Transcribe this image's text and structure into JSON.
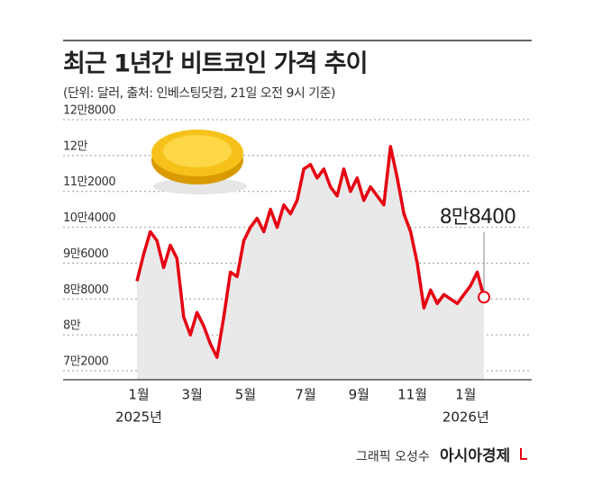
{
  "chart_data": {
    "type": "line",
    "title": "최근 1년간 비트코인 가격 추이",
    "subtitle": "(단위: 달러, 출처: 인베스팅닷컴, 21일 오전 9시 기준)",
    "credit": "그래픽 오성수",
    "source_logo": "아시아경제",
    "categories": [
      "1월",
      null,
      null,
      null,
      null,
      null,
      null,
      null,
      "3월",
      null,
      null,
      null,
      null,
      null,
      null,
      null,
      "5월",
      null,
      null,
      null,
      null,
      null,
      null,
      null,
      null,
      "7월",
      null,
      null,
      null,
      null,
      null,
      null,
      null,
      "9월",
      null,
      null,
      null,
      null,
      null,
      null,
      null,
      "11월",
      null,
      null,
      null,
      null,
      null,
      null,
      null,
      "1월",
      null,
      null,
      null
    ],
    "year_labels": [
      {
        "index": 0,
        "label": "2025년"
      },
      {
        "index": 49,
        "label": "2026년"
      }
    ],
    "series": [
      {
        "name": "비트코인",
        "color": "#e60012",
        "values": [
          92000,
          98000,
          103000,
          101000,
          95000,
          100000,
          97000,
          84000,
          80000,
          85000,
          82000,
          78000,
          75000,
          84000,
          94000,
          93000,
          101000,
          104000,
          106000,
          103000,
          108000,
          104000,
          109000,
          107000,
          110000,
          117000,
          118000,
          115000,
          117000,
          113000,
          111000,
          117000,
          112000,
          115000,
          110000,
          113000,
          111000,
          109000,
          122000,
          115000,
          107000,
          103000,
          96000,
          86000,
          90000,
          87000,
          89000,
          88000,
          87000,
          89000,
          91000,
          94000,
          88400
        ],
        "value_labels": [
          null,
          null,
          null,
          null,
          null,
          null,
          null,
          null,
          null,
          null,
          null,
          null,
          null,
          null,
          null,
          null,
          null,
          null,
          null,
          null,
          null,
          null,
          null,
          null,
          null,
          null,
          null,
          null,
          null,
          null,
          null,
          null,
          null,
          null,
          null,
          null,
          null,
          null,
          null,
          null,
          null,
          null,
          null,
          null,
          null,
          null,
          null,
          null,
          null,
          null,
          null,
          null,
          "8만8400"
        ]
      }
    ],
    "ylim": [
      70000,
      130000
    ],
    "yticks": [
      {
        "value": 72000,
        "label": "7만2000"
      },
      {
        "value": 80000,
        "label": "8만"
      },
      {
        "value": 88000,
        "label": "8만8000"
      },
      {
        "value": 96000,
        "label": "9만6000"
      },
      {
        "value": 104000,
        "label": "10만4000"
      },
      {
        "value": 112000,
        "label": "11만2000"
      },
      {
        "value": 120000,
        "label": "12만"
      },
      {
        "value": 128000,
        "label": "12만8000"
      }
    ],
    "grid": true,
    "area_color": "#e9e9e9"
  }
}
